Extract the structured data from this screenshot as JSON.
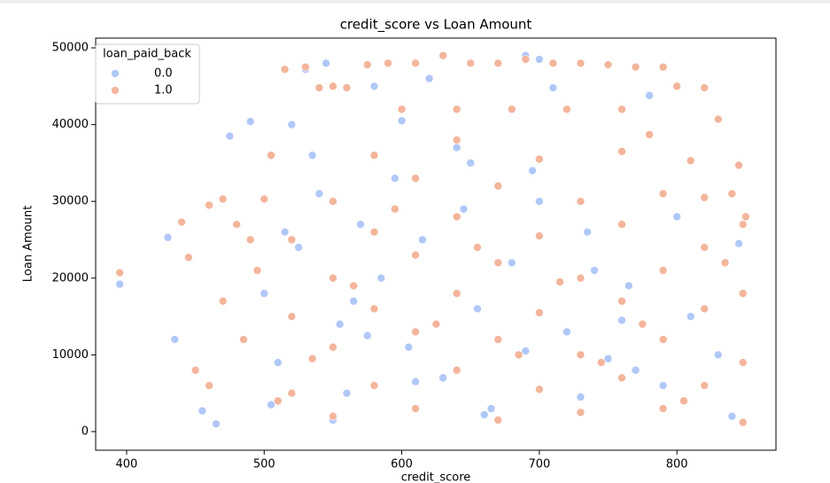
{
  "chart_data": {
    "type": "scatter",
    "title": "credit_score vs Loan Amount",
    "x_label": "credit_score",
    "y_label": "Loan Amount",
    "xlim": [
      377.5,
      872
    ],
    "ylim": [
      -2425,
      51270
    ],
    "xticks": [
      400,
      500,
      600,
      700,
      800
    ],
    "yticks": [
      0,
      10000,
      20000,
      30000,
      40000,
      50000
    ],
    "legend_title": "loan_paid_back",
    "legend_position": "upper left",
    "series": [
      {
        "name": "0.0",
        "color": "#b0c8f7",
        "x": [
          395,
          430,
          435,
          455,
          465,
          475,
          490,
          520,
          530,
          545,
          580,
          620,
          690,
          700,
          710,
          780,
          500,
          510,
          525,
          540,
          555,
          560,
          570,
          585,
          595,
          605,
          615,
          630,
          645,
          655,
          665,
          680,
          695,
          720,
          735,
          750,
          765,
          790,
          810,
          830,
          845,
          505,
          535,
          550,
          575,
          600,
          640,
          660,
          700,
          740,
          770,
          800,
          840,
          515,
          565,
          610,
          650,
          690,
          730,
          760
        ],
        "values": [
          19200,
          25300,
          12000,
          2700,
          1000,
          38500,
          40400,
          40000,
          47200,
          48000,
          45000,
          46000,
          49000,
          48500,
          44800,
          43800,
          18000,
          9000,
          24000,
          31000,
          14000,
          5000,
          27000,
          20000,
          33000,
          11000,
          25000,
          7000,
          29000,
          16000,
          3000,
          22000,
          34000,
          13000,
          26000,
          9500,
          19000,
          6000,
          15000,
          10000,
          24500,
          3500,
          36000,
          1500,
          12500,
          40500,
          37000,
          2200,
          30000,
          21000,
          8000,
          28000,
          2000,
          26000,
          17000,
          6500,
          35000,
          10500,
          4500,
          14500
        ]
      },
      {
        "name": "1.0",
        "color": "#f3b59b",
        "x": [
          395,
          440,
          445,
          450,
          460,
          470,
          480,
          490,
          500,
          505,
          515,
          530,
          540,
          550,
          560,
          575,
          590,
          610,
          630,
          650,
          670,
          690,
          710,
          730,
          750,
          770,
          790,
          800,
          820,
          830,
          845,
          600,
          640,
          680,
          720,
          760,
          780,
          810,
          840,
          850,
          520,
          520,
          520,
          550,
          550,
          550,
          550,
          580,
          580,
          580,
          580,
          610,
          610,
          610,
          610,
          640,
          640,
          640,
          640,
          670,
          670,
          670,
          670,
          700,
          700,
          700,
          700,
          730,
          730,
          730,
          730,
          760,
          760,
          760,
          760,
          790,
          790,
          790,
          790,
          820,
          820,
          820,
          820,
          848,
          848,
          848,
          848,
          485,
          470,
          460,
          495,
          510,
          535,
          565,
          595,
          625,
          655,
          685,
          715,
          745,
          775,
          805,
          835
        ],
        "values": [
          20700,
          27300,
          22700,
          8000,
          29500,
          30300,
          27000,
          25000,
          30300,
          36000,
          47200,
          47500,
          44800,
          45000,
          44800,
          47800,
          48000,
          48000,
          49000,
          48000,
          48000,
          48500,
          48000,
          48000,
          47800,
          47500,
          47500,
          45000,
          44800,
          40700,
          34700,
          42000,
          42000,
          42000,
          42000,
          42000,
          38700,
          35300,
          31000,
          28000,
          5000,
          15000,
          25000,
          2000,
          11000,
          20000,
          30000,
          6000,
          16000,
          26000,
          36000,
          3000,
          13000,
          23000,
          33000,
          8000,
          18000,
          28000,
          38000,
          1500,
          12000,
          22000,
          32000,
          5500,
          15500,
          25500,
          35500,
          2500,
          10000,
          20000,
          30000,
          7000,
          17000,
          27000,
          36500,
          3000,
          12000,
          21000,
          31000,
          6000,
          16000,
          24000,
          30500,
          1200,
          9000,
          18000,
          27000,
          12000,
          17000,
          6000,
          21000,
          4000,
          9500,
          19000,
          29000,
          14000,
          24000,
          10000,
          19500,
          9000,
          14000,
          4000,
          22000
        ]
      }
    ]
  }
}
